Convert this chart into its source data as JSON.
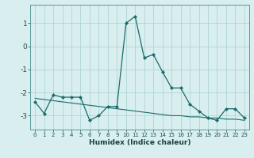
{
  "xlabel": "Humidex (Indice chaleur)",
  "bg_color": "#d9eeee",
  "grid_color": "#b0d4d4",
  "line_color": "#1a6b6b",
  "x_values": [
    0,
    1,
    2,
    3,
    4,
    5,
    6,
    7,
    8,
    9,
    10,
    11,
    12,
    13,
    14,
    15,
    16,
    17,
    18,
    19,
    20,
    21,
    22,
    23
  ],
  "y_main": [
    -2.4,
    -2.9,
    -2.1,
    -2.2,
    -2.2,
    -2.2,
    -3.2,
    -3.0,
    -2.6,
    -2.6,
    1.0,
    1.3,
    -0.5,
    -0.35,
    -1.1,
    -1.8,
    -1.8,
    -2.5,
    -2.8,
    -3.1,
    -3.2,
    -2.7,
    -2.7,
    -3.1
  ],
  "y_trend": [
    -2.25,
    -2.3,
    -2.35,
    -2.4,
    -2.45,
    -2.5,
    -2.55,
    -2.6,
    -2.65,
    -2.7,
    -2.75,
    -2.8,
    -2.85,
    -2.9,
    -2.95,
    -3.0,
    -3.0,
    -3.05,
    -3.05,
    -3.1,
    -3.1,
    -3.15,
    -3.15,
    -3.2
  ],
  "ylim": [
    -3.6,
    1.8
  ],
  "xlim": [
    -0.5,
    23.5
  ],
  "yticks": [
    -3,
    -2,
    -1,
    0,
    1
  ],
  "xticks": [
    0,
    1,
    2,
    3,
    4,
    5,
    6,
    7,
    8,
    9,
    10,
    11,
    12,
    13,
    14,
    15,
    16,
    17,
    18,
    19,
    20,
    21,
    22,
    23
  ]
}
